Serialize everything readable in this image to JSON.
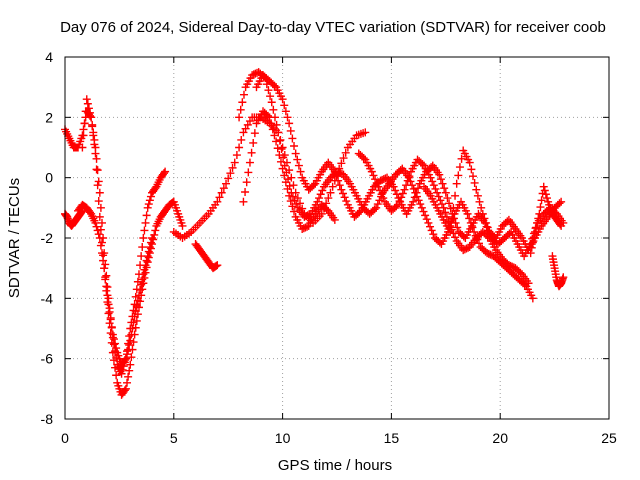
{
  "chart_data": {
    "type": "scatter",
    "title": "Day 076 of 2024, Sidereal Day-to-day VTEC variation (SDTVAR) for receiver coob",
    "xlabel": "GPS time / hours",
    "ylabel": "SDTVAR / TECUs",
    "xlim": [
      0,
      25
    ],
    "ylim": [
      -8,
      4
    ],
    "xticks": [
      "0",
      "5",
      "10",
      "15",
      "20",
      "25"
    ],
    "yticks": [
      "-8",
      "-6",
      "-4",
      "-2",
      "0",
      "2",
      "4"
    ],
    "grid": true,
    "marker": "plus",
    "color": "#ff0000",
    "series": [
      {
        "x": [
          0.0,
          0.1,
          0.2,
          0.3,
          0.4,
          0.5,
          0.6,
          0.7,
          0.8
        ],
        "y": [
          -1.2,
          -1.3,
          -1.5,
          -1.6,
          -1.5,
          -1.4,
          -1.3,
          -1.2,
          -1.1
        ]
      },
      {
        "x": [
          0.0,
          0.2,
          0.4,
          0.6,
          0.8,
          1.0,
          1.2,
          1.4,
          1.6,
          1.8,
          2.0,
          2.2,
          2.4,
          2.6,
          2.8,
          3.0,
          3.2,
          3.4,
          3.6,
          3.8,
          4.0,
          4.2,
          4.4,
          4.6
        ],
        "y": [
          1.6,
          1.3,
          1.0,
          1.0,
          1.4,
          2.2,
          2.0,
          1.0,
          -0.5,
          -2.5,
          -4.0,
          -5.3,
          -6.2,
          -6.5,
          -6.0,
          -5.0,
          -4.2,
          -3.2,
          -2.0,
          -1.0,
          -0.5,
          -0.3,
          0.0,
          0.2
        ]
      },
      {
        "x": [
          0.8,
          1.0,
          1.2,
          1.4,
          1.6,
          1.8,
          2.0,
          2.2,
          2.4,
          2.6,
          2.8,
          3.0,
          3.2,
          3.4,
          3.6,
          3.8,
          4.0,
          4.2,
          4.4,
          4.6,
          4.8,
          5.0,
          5.2,
          5.4
        ],
        "y": [
          1.0,
          2.6,
          2.0,
          0.8,
          -1.3,
          -3.0,
          -4.5,
          -5.8,
          -6.8,
          -7.2,
          -7.0,
          -6.2,
          -5.2,
          -4.3,
          -3.5,
          -2.8,
          -2.2,
          -1.6,
          -1.3,
          -1.1,
          -0.9,
          -0.8,
          -1.2,
          -1.6
        ]
      },
      {
        "x": [
          0.6,
          0.8,
          1.0,
          1.2,
          1.4,
          1.6,
          1.8,
          2.0,
          2.2,
          2.4,
          2.6,
          2.8,
          3.0,
          3.2,
          3.4,
          3.6,
          3.8,
          4.0
        ],
        "y": [
          -1.1,
          -0.9,
          -1.0,
          -1.2,
          -1.5,
          -2.0,
          -3.0,
          -4.2,
          -5.2,
          -5.8,
          -6.2,
          -6.0,
          -5.4,
          -4.6,
          -3.9,
          -3.2,
          -2.6,
          -2.0
        ]
      },
      {
        "x": [
          5.0,
          5.4,
          5.8,
          6.2,
          6.6,
          7.0,
          7.4,
          7.8,
          8.2,
          8.6,
          9.0,
          9.4,
          9.8,
          10.2,
          10.6,
          11.0,
          11.4,
          11.8,
          12.2,
          12.6,
          13.0,
          13.4,
          13.8
        ],
        "y": [
          -1.8,
          -2.0,
          -1.8,
          -1.5,
          -1.2,
          -0.8,
          -0.2,
          0.5,
          1.5,
          2.0,
          2.0,
          1.8,
          1.5,
          0.5,
          -0.5,
          -1.2,
          -1.5,
          -1.2,
          -0.5,
          0.3,
          1.0,
          1.4,
          1.5
        ]
      },
      {
        "x": [
          6.0,
          6.2,
          6.4,
          6.6,
          6.8,
          7.0
        ],
        "y": [
          -2.2,
          -2.4,
          -2.6,
          -2.8,
          -3.0,
          -2.9
        ]
      },
      {
        "x": [
          8.0,
          8.3,
          8.6,
          8.9,
          9.2,
          9.5,
          9.8,
          10.1,
          10.4,
          10.7,
          11.0,
          11.3,
          11.6,
          11.9,
          12.2,
          12.5,
          12.8,
          13.1,
          13.4,
          13.7,
          14.0,
          14.3,
          14.6,
          14.9,
          15.2,
          15.5,
          15.8,
          16.1,
          16.4,
          16.7,
          17.0,
          17.3,
          17.6,
          17.9,
          18.2,
          18.5,
          18.8,
          19.1,
          19.4,
          19.7,
          20.0,
          20.3,
          20.6,
          20.9,
          21.2,
          21.5
        ],
        "y": [
          2.0,
          3.0,
          3.4,
          3.5,
          3.3,
          2.5,
          1.5,
          0.4,
          -0.5,
          -1.0,
          -1.3,
          -1.2,
          -0.8,
          -0.3,
          0.0,
          0.2,
          0.1,
          -0.2,
          -0.6,
          -1.0,
          -1.2,
          -1.0,
          -0.5,
          -0.2,
          0.1,
          0.3,
          0.0,
          -0.5,
          -1.0,
          -1.5,
          -2.0,
          -2.2,
          -1.8,
          -1.2,
          -0.8,
          -1.2,
          -1.8,
          -2.3,
          -2.5,
          -2.6,
          -2.8,
          -3.0,
          -3.2,
          -3.4,
          -3.6,
          -4.0
        ]
      },
      {
        "x": [
          8.8,
          9.1,
          9.4,
          9.7,
          10.0,
          10.3,
          10.6,
          10.9,
          11.2,
          11.5,
          11.8,
          12.1,
          12.4,
          12.7,
          13.0,
          13.3,
          13.6,
          13.9,
          14.2,
          14.5,
          14.8,
          15.1,
          15.4,
          15.7,
          16.0,
          16.3,
          16.6,
          16.9,
          17.2,
          17.5,
          17.8,
          18.1,
          18.4,
          18.7,
          19.0,
          19.3,
          19.6,
          19.9,
          20.2,
          20.5,
          20.8,
          21.1,
          21.4,
          21.7,
          22.0,
          22.3,
          22.6,
          22.9
        ],
        "y": [
          3.0,
          3.4,
          3.2,
          3.0,
          2.6,
          1.8,
          0.8,
          0.0,
          -0.4,
          -0.2,
          0.2,
          0.5,
          0.2,
          -0.4,
          -0.9,
          -1.3,
          -1.1,
          -0.7,
          -0.3,
          -0.1,
          0.0,
          -0.3,
          -0.8,
          -1.2,
          -0.8,
          -0.2,
          0.2,
          0.4,
          0.1,
          -0.5,
          -1.2,
          -1.8,
          -2.0,
          -1.6,
          -1.2,
          -1.5,
          -2.0,
          -2.2,
          -2.0,
          -1.8,
          -2.2,
          -2.6,
          -2.2,
          -1.5,
          -1.2,
          -1.0,
          -1.2,
          -1.5
        ]
      },
      {
        "x": [
          8.2,
          8.5,
          8.8,
          9.1,
          9.4,
          9.7,
          10.0,
          10.3,
          10.6,
          10.9,
          11.2,
          11.5,
          11.8,
          12.1,
          12.4
        ],
        "y": [
          -0.8,
          0.5,
          1.8,
          2.2,
          2.0,
          1.2,
          0.3,
          -0.6,
          -1.3,
          -1.7,
          -1.6,
          -1.2,
          -0.9,
          -1.1,
          -1.4
        ]
      },
      {
        "x": [
          13.5,
          13.8,
          14.1,
          14.4,
          14.7,
          15.0,
          15.3,
          15.6,
          15.9,
          16.2,
          16.5,
          16.8,
          17.1,
          17.4,
          17.7,
          18.0,
          18.3,
          18.6,
          18.9,
          19.2,
          19.5,
          19.8,
          20.1,
          20.4,
          20.7,
          21.0,
          21.3
        ],
        "y": [
          0.8,
          0.6,
          0.2,
          -0.3,
          -0.8,
          -1.1,
          -0.9,
          -0.4,
          0.2,
          0.6,
          0.4,
          0.0,
          -0.5,
          -1.0,
          -1.6,
          -2.1,
          -2.4,
          -2.3,
          -2.0,
          -1.8,
          -2.0,
          -2.4,
          -2.7,
          -2.9,
          -3.0,
          -3.2,
          -3.5
        ]
      },
      {
        "x": [
          16.5,
          16.8,
          17.1,
          17.4,
          17.7,
          18.0,
          18.3,
          18.6,
          18.9,
          19.2,
          19.5,
          19.8,
          20.1,
          20.4,
          20.7,
          21.0,
          21.3,
          21.6,
          21.9,
          22.2,
          22.5,
          22.8
        ],
        "y": [
          -0.3,
          -0.6,
          -1.0,
          -1.4,
          -1.8,
          -0.2,
          0.9,
          0.5,
          -0.4,
          -1.2,
          -1.8,
          -2.0,
          -1.6,
          -1.4,
          -1.7,
          -2.0,
          -2.4,
          -2.0,
          -1.6,
          -1.3,
          -1.0,
          -0.8
        ]
      },
      {
        "x": [
          21.4,
          21.6,
          21.8,
          22.0,
          22.2,
          22.4,
          22.6,
          22.8
        ],
        "y": [
          -2.5,
          -1.8,
          -1.2,
          -0.3,
          -0.8,
          -1.2,
          -1.4,
          -1.6
        ]
      },
      {
        "x": [
          22.4,
          22.5,
          22.6,
          22.7,
          22.8,
          22.9
        ],
        "y": [
          -2.6,
          -3.0,
          -3.4,
          -3.6,
          -3.5,
          -3.3
        ]
      }
    ]
  }
}
